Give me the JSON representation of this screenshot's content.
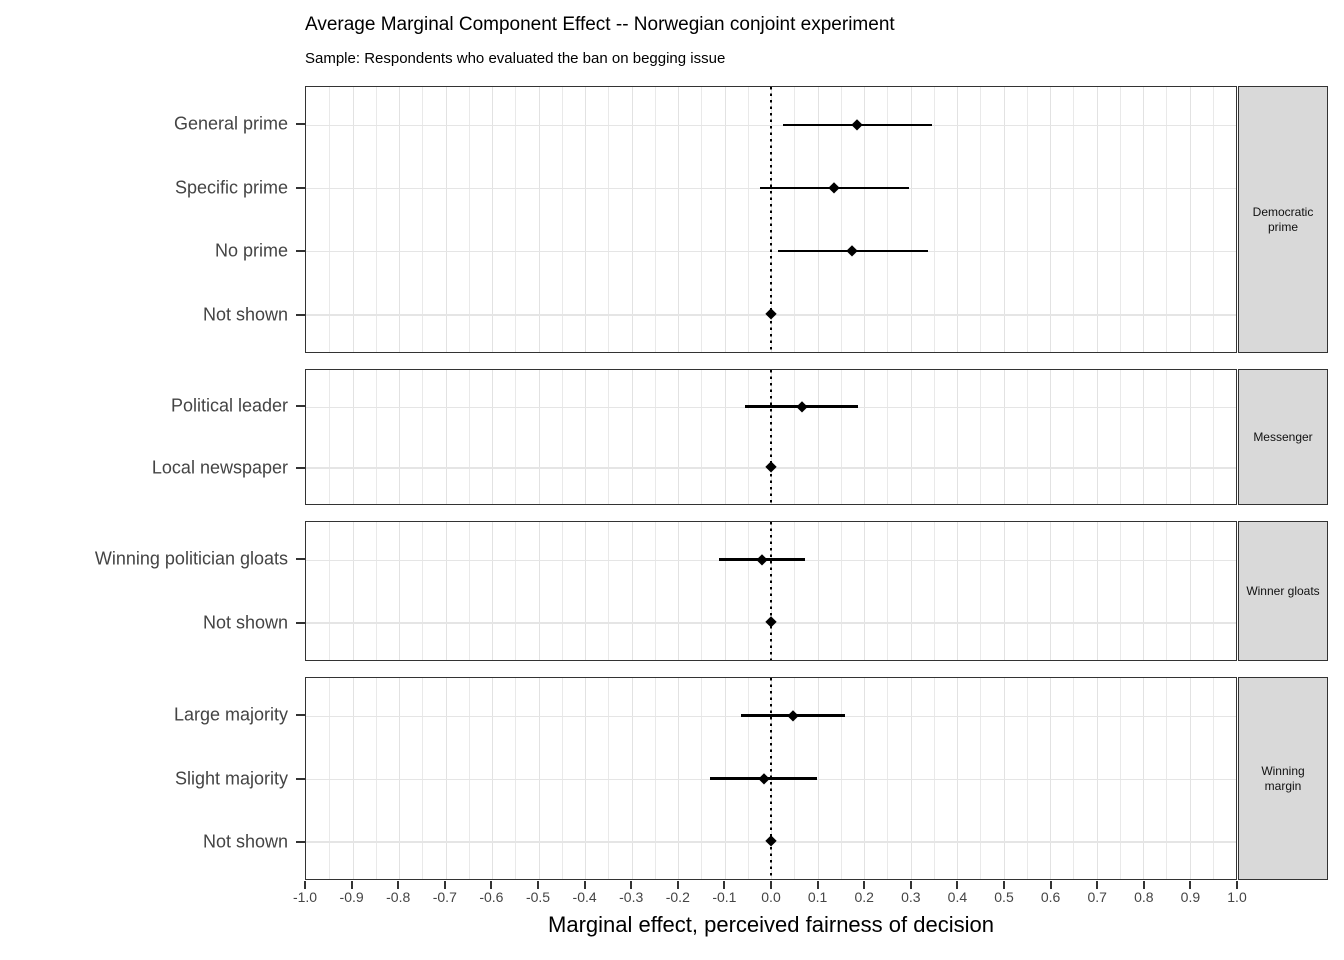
{
  "title": "Average Marginal Component Effect -- Norwegian conjoint experiment",
  "subtitle": "Sample: Respondents who evaluated the ban on begging issue",
  "xlabel": "Marginal effect, perceived fairness of decision",
  "colors": {
    "point": "#000000",
    "ci_bar": "#000000",
    "reference_line": "#000000",
    "panel_border": "#333333",
    "strip_fill": "#d9d9d9",
    "gridline": "#e5e5e5",
    "axis_text": "#444444"
  },
  "chart_data": {
    "type": "scatter",
    "subtype": "pointrange-coefficient-plot",
    "orientation": "horizontal",
    "title": "Average Marginal Component Effect -- Norwegian conjoint experiment",
    "subtitle": "Sample: Respondents who evaluated the ban on begging issue",
    "xlabel": "Marginal effect, perceived fairness of decision",
    "xlim": [
      -1.0,
      1.0
    ],
    "x_tick_labels": [
      "-1.0",
      "-0.9",
      "-0.8",
      "-0.7",
      "-0.6",
      "-0.5",
      "-0.4",
      "-0.3",
      "-0.2",
      "-0.1",
      "0.0",
      "0.1",
      "0.2",
      "0.3",
      "0.4",
      "0.5",
      "0.6",
      "0.7",
      "0.8",
      "0.9",
      "1.0"
    ],
    "minor_grid_step": 0.05,
    "grid": true,
    "legend": false,
    "reference_line_x": 0.0,
    "facets": [
      {
        "strip_label": "Democratic prime",
        "rows": [
          {
            "label": "General prime",
            "estimate": 0.186,
            "ci_low": 0.026,
            "ci_high": 0.346
          },
          {
            "label": "Specific prime",
            "estimate": 0.136,
            "ci_low": -0.024,
            "ci_high": 0.296
          },
          {
            "label": "No prime",
            "estimate": 0.175,
            "ci_low": 0.016,
            "ci_high": 0.337
          },
          {
            "label": "Not shown",
            "estimate": 0.0,
            "ci_low": null,
            "ci_high": null
          }
        ]
      },
      {
        "strip_label": "Messenger",
        "rows": [
          {
            "label": "Political leader",
            "estimate": 0.066,
            "ci_low": -0.056,
            "ci_high": 0.187
          },
          {
            "label": "Local newspaper",
            "estimate": 0.0,
            "ci_low": null,
            "ci_high": null
          }
        ]
      },
      {
        "strip_label": "Winner gloats",
        "rows": [
          {
            "label": "Winning politician gloats",
            "estimate": -0.02,
            "ci_low": -0.111,
            "ci_high": 0.074
          },
          {
            "label": "Not shown",
            "estimate": 0.0,
            "ci_low": null,
            "ci_high": null
          }
        ]
      },
      {
        "strip_label": "Winning margin",
        "rows": [
          {
            "label": "Large majority",
            "estimate": 0.047,
            "ci_low": -0.064,
            "ci_high": 0.16
          },
          {
            "label": "Slight majority",
            "estimate": -0.015,
            "ci_low": -0.131,
            "ci_high": 0.099
          },
          {
            "label": "Not shown",
            "estimate": 0.0,
            "ci_low": null,
            "ci_high": null
          }
        ]
      }
    ]
  }
}
